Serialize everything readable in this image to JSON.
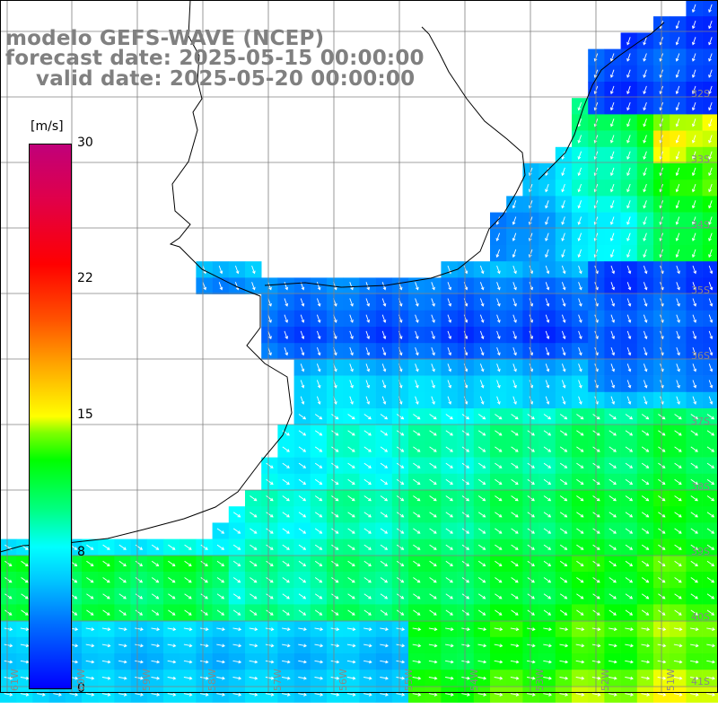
{
  "title": {
    "line1": "modelo GEFS-WAVE (NCEP)",
    "line2": "forecast date: 2025-05-15 00:00:00",
    "line3": "valid date: 2025-05-20 00:00:00"
  },
  "colorbar": {
    "unit": "[m/s]",
    "ticks": [
      "30",
      "22",
      "15",
      "8",
      "0"
    ],
    "tick_values": [
      30,
      22,
      15,
      8,
      0
    ],
    "min": 0,
    "max": 30
  },
  "lat_labels": [
    "32S",
    "33S",
    "34S",
    "35S",
    "36S",
    "37S",
    "38S",
    "39S",
    "40S",
    "41S"
  ],
  "lon_labels": [
    "61W",
    "60W",
    "59W",
    "58W",
    "57W",
    "56W",
    "55W",
    "54W",
    "53W",
    "52W",
    "51W"
  ],
  "colors": {
    "land": "#ffffff",
    "grid": "#808080",
    "coast": "#000000",
    "arrow": "#ffffff",
    "title": "#808080"
  }
}
